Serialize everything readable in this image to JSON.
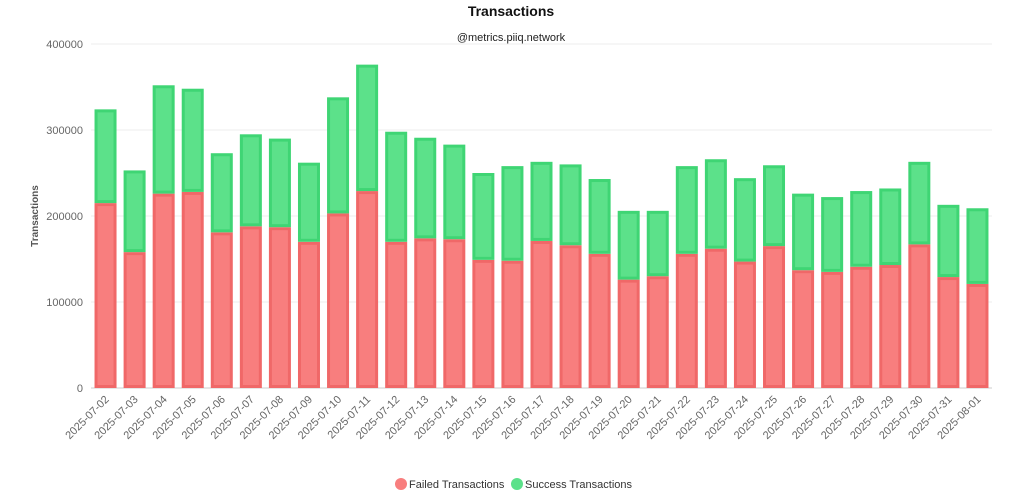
{
  "chart_data": {
    "type": "bar",
    "stacked": true,
    "title": "Transactions",
    "subtitle": "@metrics.piiq.network",
    "xlabel": "",
    "ylabel": "Transactions",
    "ylim": [
      0,
      400000
    ],
    "yticks": [
      "0",
      "100000",
      "200000",
      "300000",
      "400000"
    ],
    "grid": true,
    "legend_position": "bottom",
    "categories": [
      "2025-07-02",
      "2025-07-03",
      "2025-07-04",
      "2025-07-05",
      "2025-07-06",
      "2025-07-07",
      "2025-07-08",
      "2025-07-09",
      "2025-07-10",
      "2025-07-11",
      "2025-07-12",
      "2025-07-13",
      "2025-07-14",
      "2025-07-15",
      "2025-07-16",
      "2025-07-17",
      "2025-07-18",
      "2025-07-19",
      "2025-07-20",
      "2025-07-21",
      "2025-07-22",
      "2025-07-23",
      "2025-07-24",
      "2025-07-25",
      "2025-07-26",
      "2025-07-27",
      "2025-07-28",
      "2025-07-29",
      "2025-07-30",
      "2025-07-31",
      "2025-08-01"
    ],
    "series": [
      {
        "name": "Failed Transactions",
        "color": "#f87e7e",
        "border": "#f06868",
        "values": [
          215000,
          158000,
          226000,
          228000,
          181000,
          188000,
          187000,
          170000,
          203000,
          229000,
          170000,
          174000,
          173000,
          149000,
          148000,
          171000,
          166000,
          156000,
          126000,
          130000,
          156000,
          162000,
          147000,
          165000,
          137000,
          135000,
          141000,
          143000,
          167000,
          129000,
          121000
        ]
      },
      {
        "name": "Success Transactions",
        "color": "#5ce18a",
        "border": "#3fd574",
        "values": [
          109000,
          95000,
          126000,
          120000,
          92000,
          107000,
          103000,
          92000,
          135000,
          147000,
          128000,
          117000,
          110000,
          101000,
          110000,
          92000,
          94000,
          87000,
          80000,
          76000,
          102000,
          104000,
          97000,
          94000,
          89000,
          87000,
          88000,
          89000,
          96000,
          84000,
          88000
        ]
      }
    ]
  }
}
